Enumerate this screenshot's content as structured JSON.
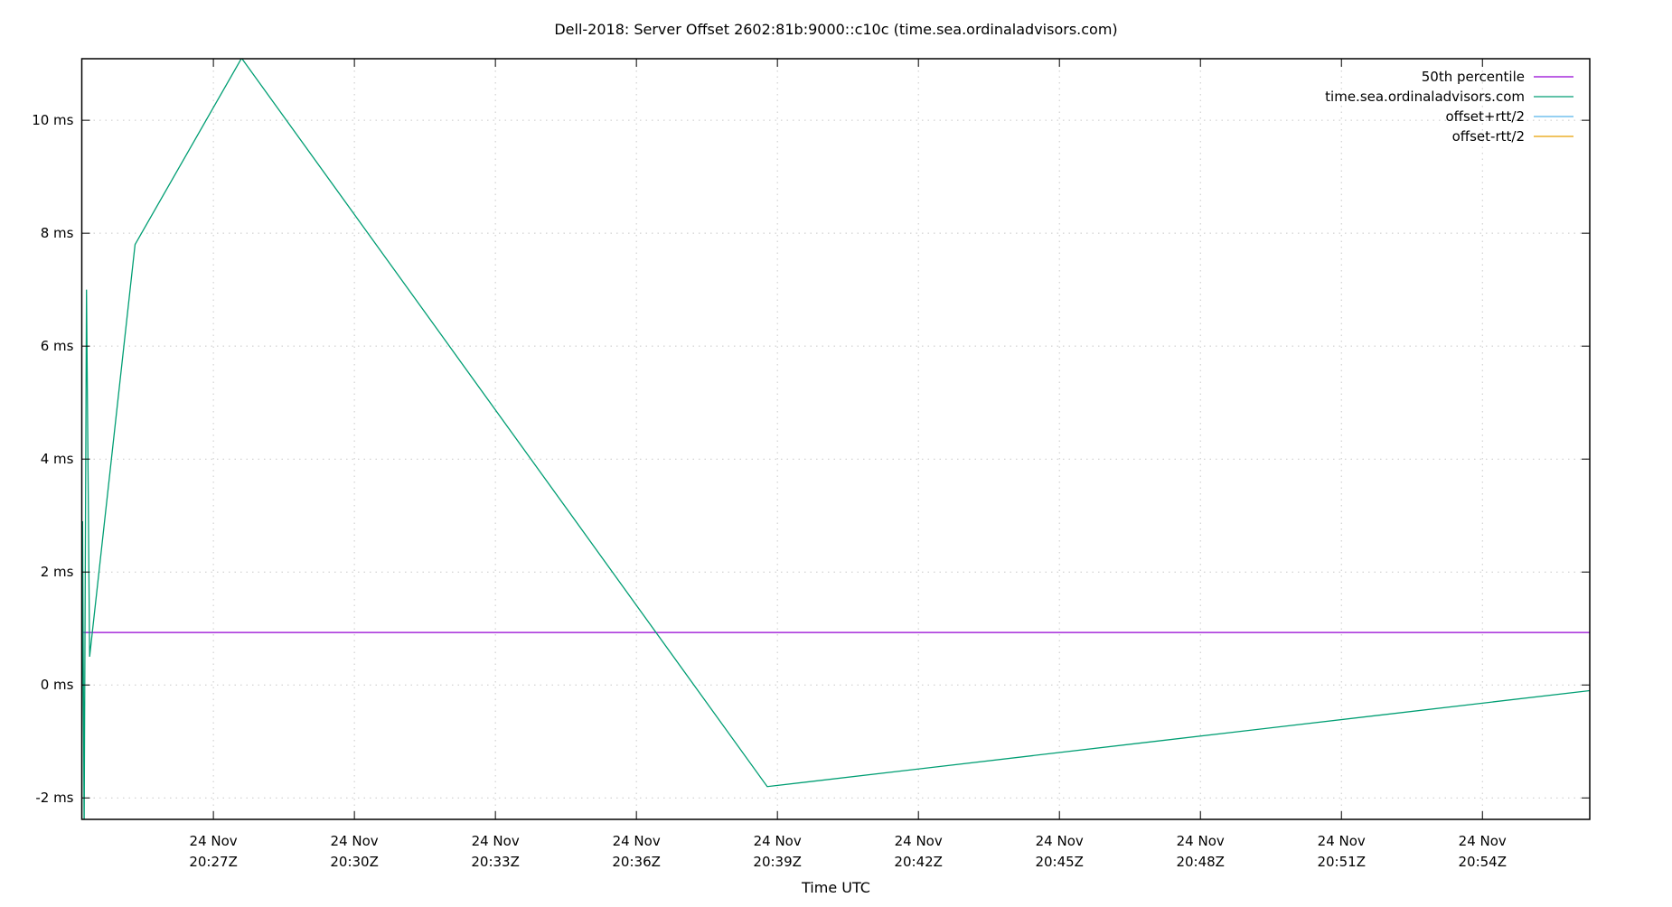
{
  "chart_data": {
    "type": "line",
    "title": "Dell-2018: Server Offset 2602:81b:9000::c10c (time.sea.ordinaladvisors.com)",
    "xlabel": "Time UTC",
    "ylabel": "",
    "xlim": [
      "2020-11-24T20:24:12Z",
      "2020-11-24T20:56:17Z"
    ],
    "ylim": [
      -2.38,
      11.09
    ],
    "grid": true,
    "legend_position": "top-right",
    "x_ticks": [
      {
        "t": "20:27",
        "label1": "24 Nov",
        "label2": "20:27Z"
      },
      {
        "t": "20:30",
        "label1": "24 Nov",
        "label2": "20:30Z"
      },
      {
        "t": "20:33",
        "label1": "24 Nov",
        "label2": "20:33Z"
      },
      {
        "t": "20:36",
        "label1": "24 Nov",
        "label2": "20:36Z"
      },
      {
        "t": "20:39",
        "label1": "24 Nov",
        "label2": "20:39Z"
      },
      {
        "t": "20:42",
        "label1": "24 Nov",
        "label2": "20:42Z"
      },
      {
        "t": "20:45",
        "label1": "24 Nov",
        "label2": "20:45Z"
      },
      {
        "t": "20:48",
        "label1": "24 Nov",
        "label2": "20:48Z"
      },
      {
        "t": "20:51",
        "label1": "24 Nov",
        "label2": "20:51Z"
      },
      {
        "t": "20:54",
        "label1": "24 Nov",
        "label2": "20:54Z"
      }
    ],
    "y_ticks": [
      {
        "v": -2,
        "label": "-2 ms"
      },
      {
        "v": 0,
        "label": "0 ms"
      },
      {
        "v": 2,
        "label": "2 ms"
      },
      {
        "v": 4,
        "label": "4 ms"
      },
      {
        "v": 6,
        "label": "6 ms"
      },
      {
        "v": 8,
        "label": "8 ms"
      },
      {
        "v": 10,
        "label": "10 ms"
      }
    ],
    "series": [
      {
        "name": "50th percentile",
        "color": "#9400d3",
        "type": "hline",
        "value": 0.93
      },
      {
        "name": "time.sea.ordinaladvisors.com",
        "color": "#009e73",
        "points": [
          [
            "20:24:12",
            -2.5
          ],
          [
            "20:24:13",
            2.9
          ],
          [
            "20:24:15",
            -2.5
          ],
          [
            "20:24:18",
            7.0
          ],
          [
            "20:24:22",
            0.5
          ],
          [
            "20:25:20",
            7.8
          ],
          [
            "20:27:36",
            11.1
          ],
          [
            "20:38:47",
            -1.8
          ],
          [
            "20:56:17",
            -0.1
          ]
        ]
      },
      {
        "name": "offset+rtt/2",
        "color": "#56b4e9",
        "points": []
      },
      {
        "name": "offset-rtt/2",
        "color": "#e69f00",
        "points": []
      }
    ]
  }
}
